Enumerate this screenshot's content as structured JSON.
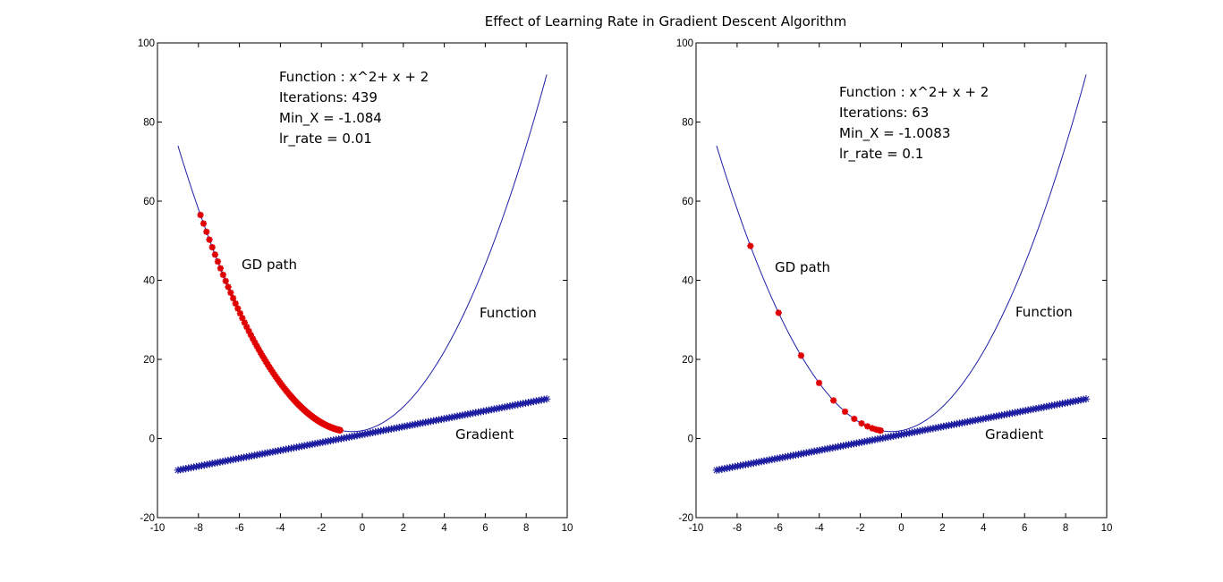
{
  "title": "Effect of Learning Rate in Gradient Descent Algorithm",
  "colors": {
    "function_line": "#1f1fa8",
    "gradient_markers": "#1a1aa0",
    "gd_path_markers": "#e00000"
  },
  "chart_data": [
    {
      "type": "line",
      "title": "",
      "xlabel": "",
      "ylabel": "",
      "xlim": [
        -10,
        10
      ],
      "ylim": [
        -20,
        100
      ],
      "xticks": [
        -10,
        -8,
        -6,
        -4,
        -2,
        0,
        2,
        4,
        6,
        8,
        10
      ],
      "yticks": [
        -20,
        0,
        20,
        40,
        60,
        80,
        100
      ],
      "grid": false,
      "function": "x^2 + x + 2",
      "x_range": [
        -9,
        9
      ],
      "series": [
        {
          "name": "Function",
          "kind": "line",
          "x_start": -9,
          "x_end": 9,
          "y_start": 74,
          "y_end": 92,
          "min_point": [
            -0.5,
            1.75
          ]
        },
        {
          "name": "Gradient",
          "kind": "marker-line",
          "marker": "*",
          "x_start": -9,
          "x_end": 9,
          "y_start": -8,
          "y_end": 10
        },
        {
          "name": "GD path",
          "kind": "markers",
          "marker": "*",
          "x_start": -7.9,
          "iterations": 439,
          "learning_rate": 0.01,
          "x_end": -1.084
        }
      ],
      "annotations": {
        "info": [
          "Function :  x^2+ x + 2",
          "Iterations: 439",
          "Min_X = -1.084",
          "lr_rate = 0.01"
        ],
        "gd_path_label": "GD path",
        "function_label": "Function",
        "gradient_label": "Gradient"
      }
    },
    {
      "type": "line",
      "title": "",
      "xlabel": "",
      "ylabel": "",
      "xlim": [
        -10,
        10
      ],
      "ylim": [
        -20,
        100
      ],
      "xticks": [
        -10,
        -8,
        -6,
        -4,
        -2,
        0,
        2,
        4,
        6,
        8,
        10
      ],
      "yticks": [
        -20,
        0,
        20,
        40,
        60,
        80,
        100
      ],
      "grid": false,
      "function": "x^2 + x + 2",
      "x_range": [
        -9,
        9
      ],
      "series": [
        {
          "name": "Function",
          "kind": "line",
          "x_start": -9,
          "x_end": 9,
          "y_start": 74,
          "y_end": 92,
          "min_point": [
            -0.5,
            1.75
          ]
        },
        {
          "name": "Gradient",
          "kind": "marker-line",
          "marker": "*",
          "x_start": -9,
          "x_end": 9,
          "y_start": -8,
          "y_end": 10
        },
        {
          "name": "GD path",
          "kind": "markers",
          "marker": "*",
          "x_start": -7.35,
          "iterations": 63,
          "learning_rate": 0.1,
          "x_end": -1.0083
        }
      ],
      "annotations": {
        "info": [
          "Function :  x^2+ x + 2",
          "Iterations: 63",
          "Min_X = -1.0083",
          "lr_rate = 0.1"
        ],
        "gd_path_label": "GD path",
        "function_label": "Function",
        "gradient_label": "Gradient"
      }
    }
  ]
}
